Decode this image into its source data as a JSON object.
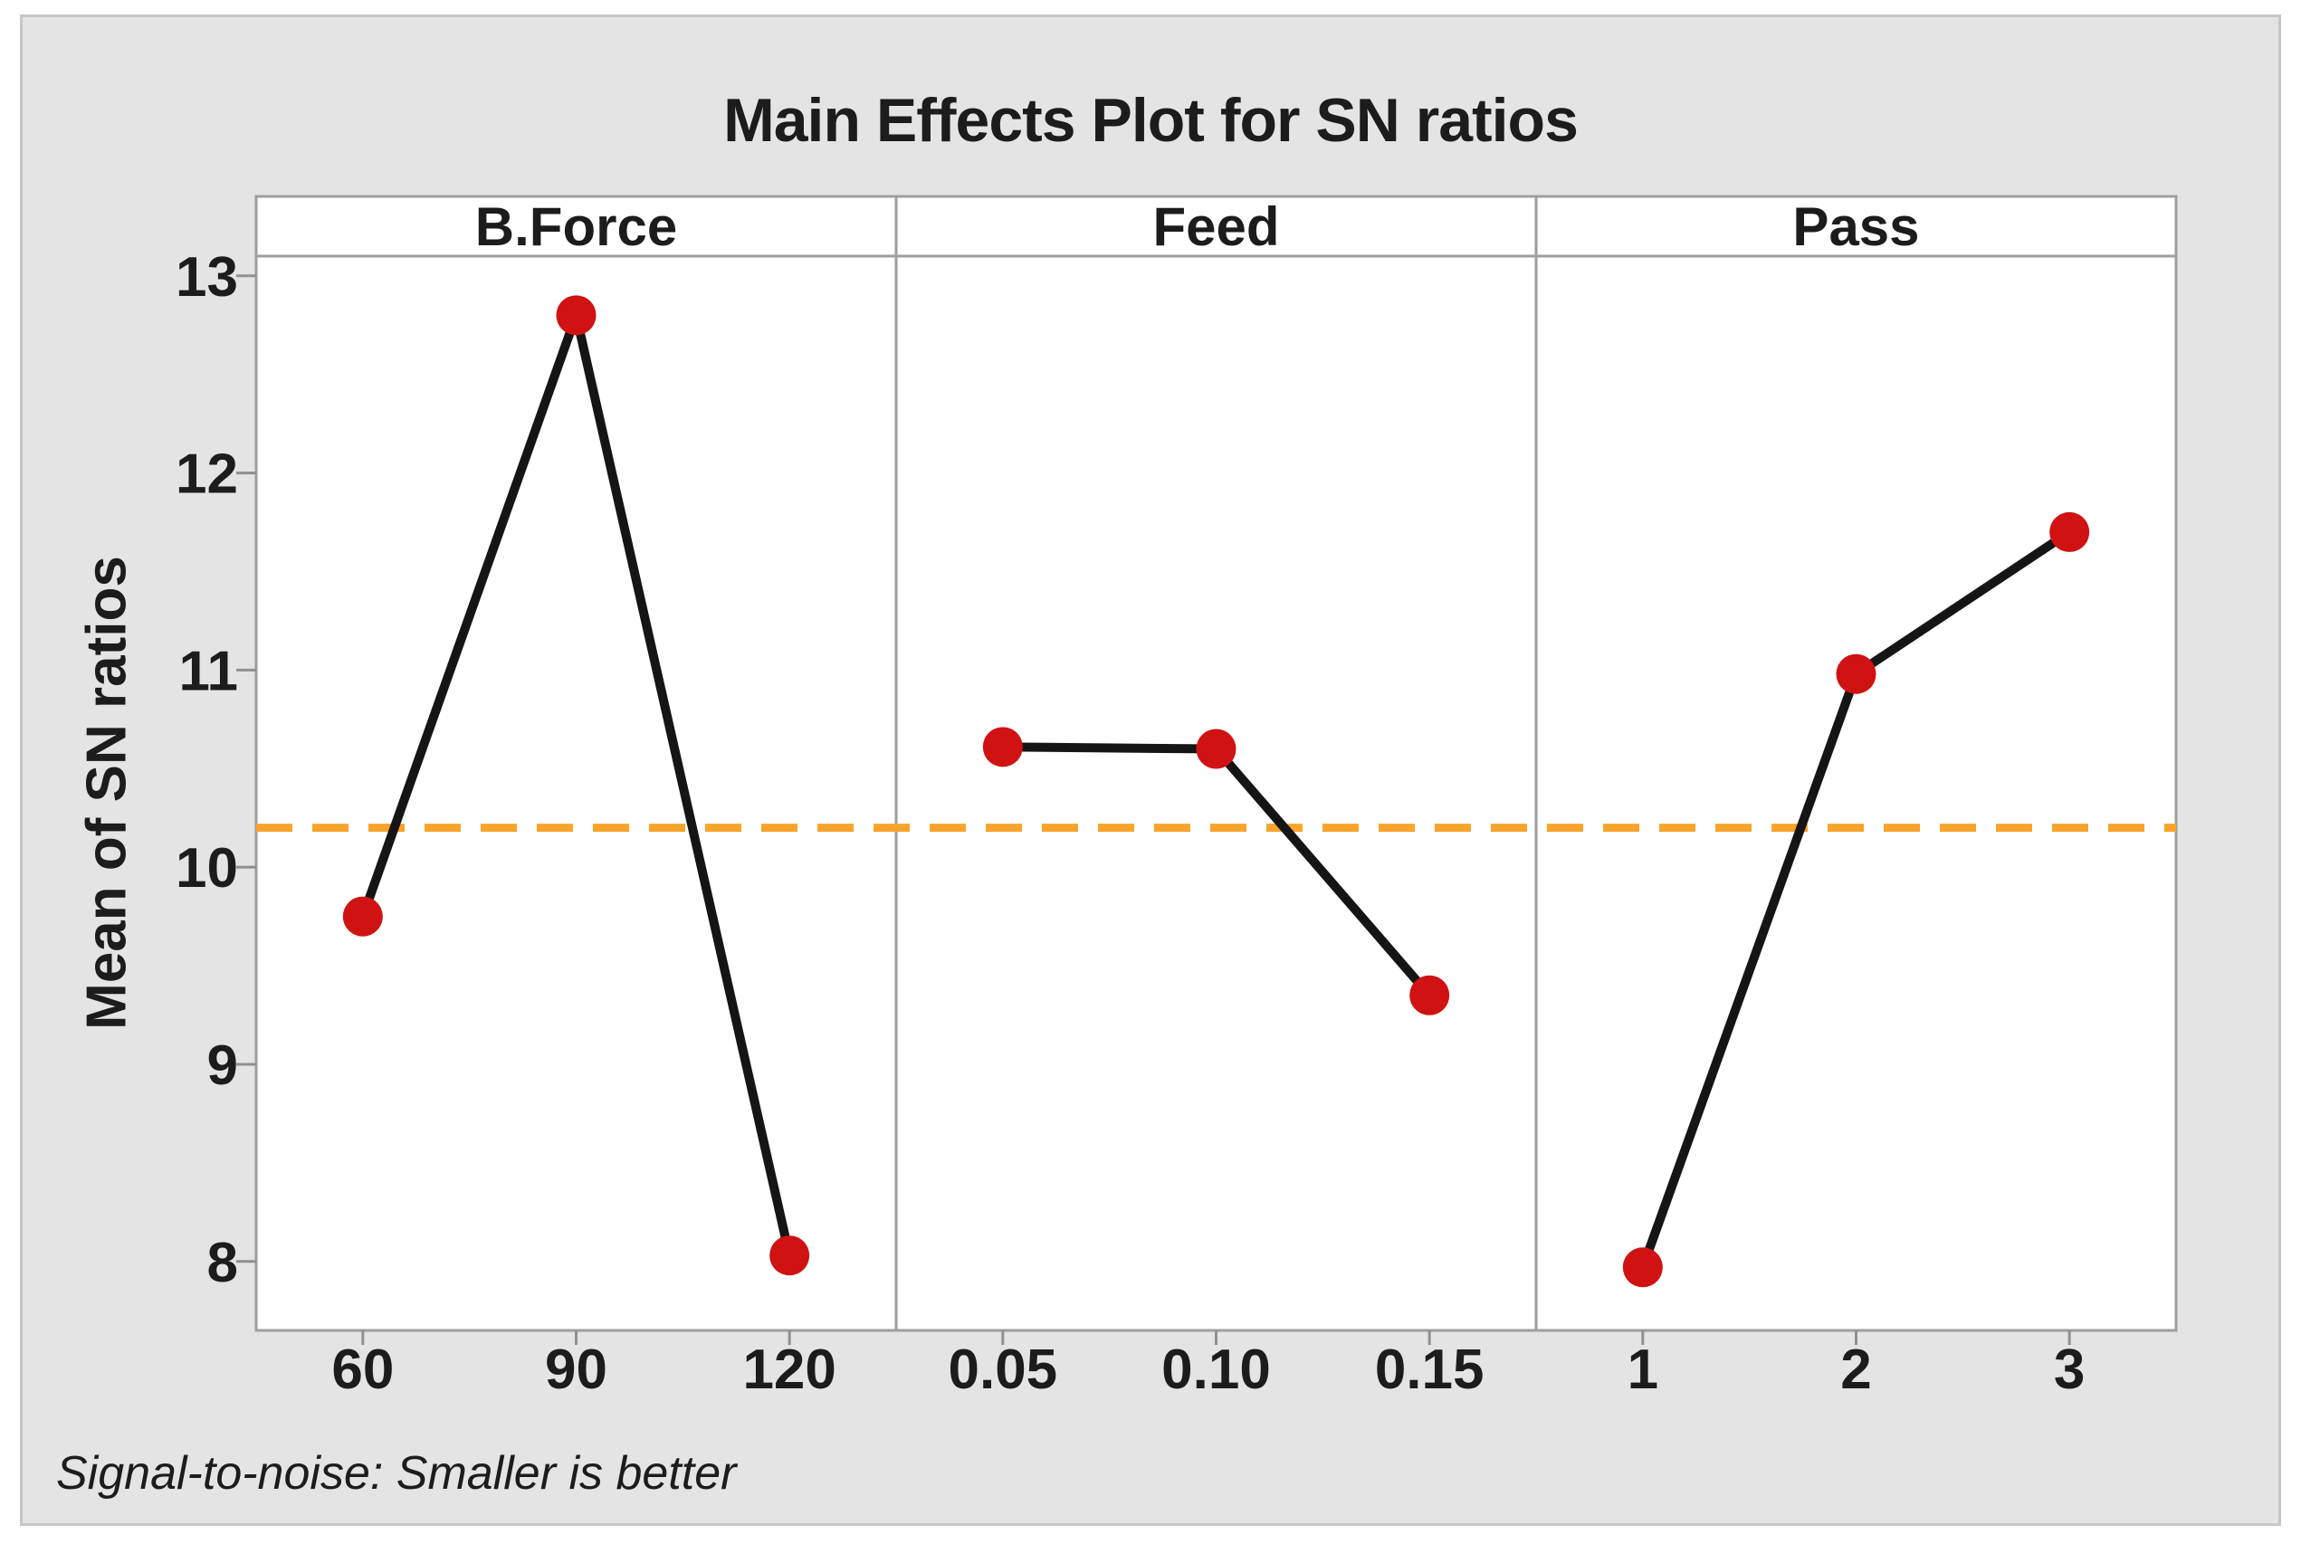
{
  "chart_data": {
    "type": "line",
    "title": "Main Effects Plot for SN ratios",
    "ylabel": "Mean of SN ratios",
    "footnote": "Signal-to-noise: Smaller is better",
    "grid": false,
    "legend": "none",
    "ylim": [
      7.65,
      13.1
    ],
    "y_ticks": [
      8,
      9,
      10,
      11,
      12,
      13
    ],
    "reference_line": 10.2,
    "panels": [
      {
        "label": "B.Force",
        "categories": [
          "60",
          "90",
          "120"
        ],
        "values": [
          9.75,
          12.8,
          8.03
        ]
      },
      {
        "label": "Feed",
        "categories": [
          "0.05",
          "0.10",
          "0.15"
        ],
        "values": [
          10.61,
          10.6,
          9.35
        ]
      },
      {
        "label": "Pass",
        "categories": [
          "1",
          "2",
          "3"
        ],
        "values": [
          7.97,
          10.98,
          11.7
        ]
      }
    ],
    "colors": {
      "marker": "#D01212",
      "line": "#151515",
      "reference": "#F7A42C",
      "panel_border": "#9E9E9E",
      "tick": "#8F8F8F",
      "panel_fill": "#FFFFFF",
      "frame_bg": "#E4E4E4",
      "frame_border": "#C6C6C6",
      "text": "#1C1C1C"
    }
  }
}
